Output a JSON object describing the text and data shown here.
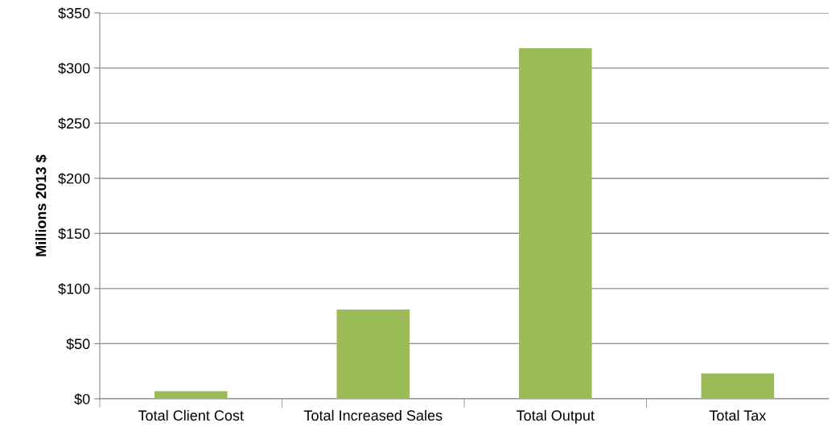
{
  "chart_data": {
    "type": "bar",
    "ylabel": "Millions 2013 $",
    "categories": [
      "Total Client Cost",
      "Total Increased Sales",
      "Total Output",
      "Total Tax"
    ],
    "values": [
      7,
      81,
      318,
      23
    ],
    "color": "#9bbb59",
    "ylim": [
      0,
      350
    ],
    "yticks": [
      {
        "value": 0,
        "label": "$0"
      },
      {
        "value": 50,
        "label": "$50"
      },
      {
        "value": 100,
        "label": "$100"
      },
      {
        "value": 150,
        "label": "$150"
      },
      {
        "value": 200,
        "label": "$200"
      },
      {
        "value": 250,
        "label": "$250"
      },
      {
        "value": 300,
        "label": "$300"
      },
      {
        "value": 350,
        "label": "$350"
      }
    ],
    "grid": "y",
    "legend": false
  }
}
